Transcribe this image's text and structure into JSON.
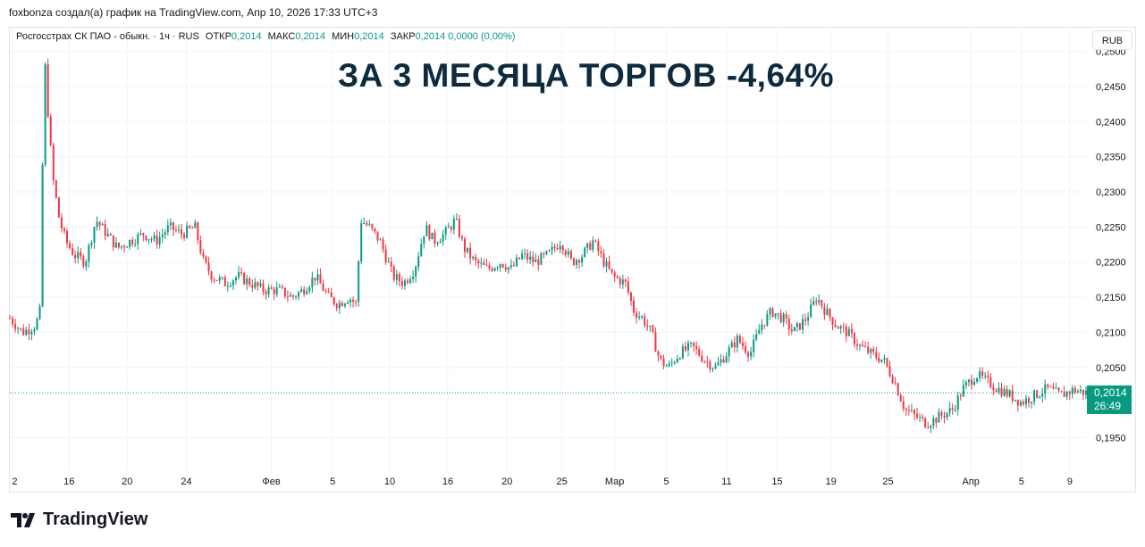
{
  "header": {
    "attribution": "foxbonza создал(а) график на TradingView.com, Апр 10, 2026 17:33 UTC+3"
  },
  "legend": {
    "symbol": "Росгосстрах СК ПАО - обыкн. · 1ч · RUS",
    "open_label": "ОТКР",
    "open_value": "0,2014",
    "high_label": "МАКС",
    "high_value": "0,2014",
    "low_label": "МИН",
    "low_value": "0,2014",
    "close_label": "ЗАКР",
    "close_value": "0,2014",
    "change": "0,0000 (0,00%)"
  },
  "title": "ЗА 3 МЕСЯЦА ТОРГОВ -4,64%",
  "currency_button": "RUB",
  "price_badge": {
    "price": "0,2014",
    "timer": "26:49"
  },
  "brand": {
    "name": "TradingView"
  },
  "colors": {
    "up": "#089981",
    "down": "#f23645",
    "badge": "#089981",
    "title": "#0e2a3d"
  },
  "chart_data": {
    "type": "candlestick",
    "ylim": [
      0.1915,
      0.2525
    ],
    "y_ticks": [
      "0,2500",
      "0,2450",
      "0,2400",
      "0,2350",
      "0,2300",
      "0,2250",
      "0,2200",
      "0,2150",
      "0,2100",
      "0,2050",
      "0,1950"
    ],
    "y_tick_values": [
      0.25,
      0.245,
      0.24,
      0.235,
      0.23,
      0.225,
      0.22,
      0.215,
      0.21,
      0.205,
      0.195
    ],
    "x_ticks": [
      {
        "label": "2",
        "pos": 0.002
      },
      {
        "label": "16",
        "pos": 0.055
      },
      {
        "label": "20",
        "pos": 0.109
      },
      {
        "label": "24",
        "pos": 0.164
      },
      {
        "label": "Фев",
        "pos": 0.243
      },
      {
        "label": "5",
        "pos": 0.3
      },
      {
        "label": "10",
        "pos": 0.353
      },
      {
        "label": "16",
        "pos": 0.407
      },
      {
        "label": "20",
        "pos": 0.462
      },
      {
        "label": "25",
        "pos": 0.513
      },
      {
        "label": "Мар",
        "pos": 0.562
      },
      {
        "label": "5",
        "pos": 0.61
      },
      {
        "label": "11",
        "pos": 0.666
      },
      {
        "label": "15",
        "pos": 0.713
      },
      {
        "label": "19",
        "pos": 0.763
      },
      {
        "label": "25",
        "pos": 0.816
      },
      {
        "label": "Апр",
        "pos": 0.893
      },
      {
        "label": "5",
        "pos": 0.94
      },
      {
        "label": "9",
        "pos": 0.985
      }
    ],
    "last_price": 0.2014,
    "path": [
      [
        0.0,
        0.212
      ],
      [
        0.012,
        0.21
      ],
      [
        0.024,
        0.211
      ],
      [
        0.028,
        0.213
      ],
      [
        0.03,
        0.23
      ],
      [
        0.032,
        0.25
      ],
      [
        0.036,
        0.24
      ],
      [
        0.04,
        0.232
      ],
      [
        0.046,
        0.226
      ],
      [
        0.052,
        0.223
      ],
      [
        0.06,
        0.221
      ],
      [
        0.07,
        0.22
      ],
      [
        0.08,
        0.226
      ],
      [
        0.09,
        0.224
      ],
      [
        0.1,
        0.222
      ],
      [
        0.112,
        0.223
      ],
      [
        0.124,
        0.224
      ],
      [
        0.136,
        0.223
      ],
      [
        0.148,
        0.225
      ],
      [
        0.16,
        0.224
      ],
      [
        0.172,
        0.225
      ],
      [
        0.18,
        0.22
      ],
      [
        0.188,
        0.218
      ],
      [
        0.2,
        0.217
      ],
      [
        0.212,
        0.218
      ],
      [
        0.224,
        0.217
      ],
      [
        0.236,
        0.216
      ],
      [
        0.25,
        0.216
      ],
      [
        0.262,
        0.215
      ],
      [
        0.272,
        0.216
      ],
      [
        0.284,
        0.218
      ],
      [
        0.296,
        0.215
      ],
      [
        0.305,
        0.214
      ],
      [
        0.315,
        0.215
      ],
      [
        0.322,
        0.214
      ],
      [
        0.326,
        0.226
      ],
      [
        0.334,
        0.225
      ],
      [
        0.344,
        0.223
      ],
      [
        0.356,
        0.218
      ],
      [
        0.366,
        0.217
      ],
      [
        0.376,
        0.219
      ],
      [
        0.386,
        0.225
      ],
      [
        0.394,
        0.223
      ],
      [
        0.404,
        0.224
      ],
      [
        0.414,
        0.226
      ],
      [
        0.422,
        0.222
      ],
      [
        0.432,
        0.22
      ],
      [
        0.444,
        0.219
      ],
      [
        0.456,
        0.22
      ],
      [
        0.466,
        0.219
      ],
      [
        0.476,
        0.221
      ],
      [
        0.488,
        0.22
      ],
      [
        0.5,
        0.221
      ],
      [
        0.512,
        0.223
      ],
      [
        0.522,
        0.22
      ],
      [
        0.532,
        0.221
      ],
      [
        0.542,
        0.223
      ],
      [
        0.552,
        0.22
      ],
      [
        0.56,
        0.218
      ],
      [
        0.572,
        0.217
      ],
      [
        0.58,
        0.213
      ],
      [
        0.588,
        0.212
      ],
      [
        0.596,
        0.21
      ],
      [
        0.604,
        0.206
      ],
      [
        0.612,
        0.205
      ],
      [
        0.622,
        0.207
      ],
      [
        0.634,
        0.208
      ],
      [
        0.646,
        0.206
      ],
      [
        0.656,
        0.205
      ],
      [
        0.666,
        0.207
      ],
      [
        0.676,
        0.209
      ],
      [
        0.688,
        0.207
      ],
      [
        0.698,
        0.211
      ],
      [
        0.708,
        0.213
      ],
      [
        0.718,
        0.212
      ],
      [
        0.728,
        0.21
      ],
      [
        0.74,
        0.212
      ],
      [
        0.75,
        0.215
      ],
      [
        0.758,
        0.213
      ],
      [
        0.768,
        0.211
      ],
      [
        0.778,
        0.21
      ],
      [
        0.79,
        0.208
      ],
      [
        0.8,
        0.207
      ],
      [
        0.812,
        0.206
      ],
      [
        0.822,
        0.203
      ],
      [
        0.832,
        0.199
      ],
      [
        0.842,
        0.198
      ],
      [
        0.852,
        0.197
      ],
      [
        0.864,
        0.198
      ],
      [
        0.876,
        0.199
      ],
      [
        0.886,
        0.202
      ],
      [
        0.898,
        0.204
      ],
      [
        0.908,
        0.203
      ],
      [
        0.918,
        0.202
      ],
      [
        0.93,
        0.201
      ],
      [
        0.94,
        0.2
      ],
      [
        0.952,
        0.201
      ],
      [
        0.964,
        0.202
      ],
      [
        0.976,
        0.201
      ],
      [
        0.988,
        0.2018
      ],
      [
        1.0,
        0.2014
      ]
    ]
  }
}
